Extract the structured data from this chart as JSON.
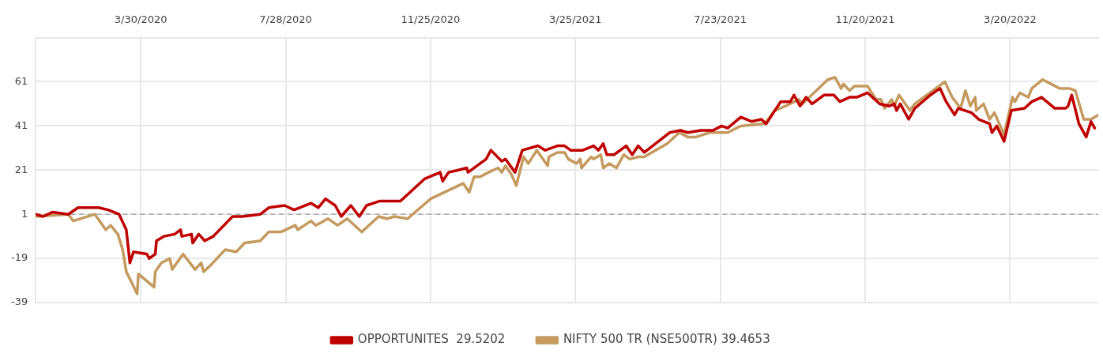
{
  "chart_data": {
    "type": "line",
    "xlim": [
      "2020-01-03",
      "2022-06-01"
    ],
    "xticks": [
      {
        "value": "2020-03-30",
        "label": "3/30/2020"
      },
      {
        "value": "2020-07-28",
        "label": "7/28/2020"
      },
      {
        "value": "2020-11-25",
        "label": "11/25/2020"
      },
      {
        "value": "2021-03-25",
        "label": "3/25/2021"
      },
      {
        "value": "2021-07-23",
        "label": "7/23/2021"
      },
      {
        "value": "2021-11-20",
        "label": "11/20/2021"
      },
      {
        "value": "2022-03-20",
        "label": "3/20/2022"
      }
    ],
    "ylim": [
      -39,
      81
    ],
    "yticks": [
      -39,
      -19,
      1,
      21,
      41,
      61
    ],
    "grid": true,
    "legend": "bottom",
    "marker": "none",
    "line_style": "solid",
    "ref_lines": [
      {
        "axis": "y",
        "value": 1,
        "color": "#aaaaaa",
        "line_style": "dashed"
      }
    ],
    "series": [
      {
        "name": "OPPORTUNITES  29.5202",
        "color": "#c00000",
        "x": [
          "2020-01-03",
          "2020-01-09",
          "2020-01-17",
          "2020-01-30",
          "2020-02-07",
          "2020-02-24",
          "2020-03-03",
          "2020-03-12",
          "2020-03-18",
          "2020-03-21",
          "2020-03-24",
          "2020-04-04",
          "2020-04-06",
          "2020-04-11",
          "2020-04-12",
          "2020-04-18",
          "2020-04-27",
          "2020-05-02",
          "2020-05-03",
          "2020-05-11",
          "2020-05-12",
          "2020-05-17",
          "2020-05-22",
          "2020-05-29",
          "2020-06-14",
          "2020-06-22",
          "2020-07-07",
          "2020-07-14",
          "2020-07-27",
          "2020-08-04",
          "2020-08-18",
          "2020-08-24",
          "2020-08-30",
          "2020-09-07",
          "2020-09-12",
          "2020-09-20",
          "2020-09-27",
          "2020-10-03",
          "2020-10-14",
          "2020-10-31",
          "2020-11-20",
          "2020-12-03",
          "2020-12-05",
          "2020-12-10",
          "2020-12-18",
          "2020-12-25",
          "2020-12-26",
          "2021-01-10",
          "2021-01-14",
          "2021-01-23",
          "2021-01-26",
          "2021-02-03",
          "2021-02-09",
          "2021-02-22",
          "2021-02-28",
          "2021-03-10",
          "2021-03-16",
          "2021-03-21",
          "2021-03-31",
          "2021-04-09",
          "2021-04-13",
          "2021-04-17",
          "2021-04-20",
          "2021-04-26",
          "2021-05-06",
          "2021-05-11",
          "2021-05-16",
          "2021-05-21",
          "2021-06-11",
          "2021-06-20",
          "2021-06-26",
          "2021-07-07",
          "2021-07-17",
          "2021-07-24",
          "2021-07-29",
          "2021-08-09",
          "2021-08-18",
          "2021-08-26",
          "2021-08-30",
          "2021-09-11",
          "2021-09-19",
          "2021-09-22",
          "2021-09-27",
          "2021-10-02",
          "2021-10-07",
          "2021-10-17",
          "2021-10-25",
          "2021-10-30",
          "2021-11-07",
          "2021-11-13",
          "2021-11-22",
          "2021-12-02",
          "2021-12-10",
          "2021-12-14",
          "2021-12-16",
          "2021-12-19",
          "2021-12-26",
          "2021-12-31",
          "2022-01-13",
          "2022-01-21",
          "2022-01-26",
          "2022-02-02",
          "2022-02-05",
          "2022-02-16",
          "2022-02-22",
          "2022-03-03",
          "2022-03-05",
          "2022-03-09",
          "2022-03-15",
          "2022-03-21",
          "2022-04-01",
          "2022-04-07",
          "2022-04-15",
          "2022-04-26",
          "2022-05-05",
          "2022-05-07",
          "2022-05-10",
          "2022-05-16",
          "2022-05-22",
          "2022-05-26",
          "2022-05-29"
        ],
        "values": [
          1,
          0,
          2,
          1,
          4,
          4,
          3,
          1,
          -6,
          -21,
          -16,
          -17,
          -19,
          -17,
          -11,
          -9,
          -8,
          -6,
          -9,
          -8,
          -12,
          -8,
          -11,
          -9,
          0,
          0,
          1,
          4,
          5,
          3,
          6,
          4,
          8,
          5,
          0,
          5,
          0,
          5,
          7,
          7,
          17,
          20,
          16,
          20,
          21,
          22,
          20,
          26,
          30,
          25,
          26,
          20,
          30,
          32,
          30,
          32,
          32,
          30,
          30,
          32,
          30,
          33,
          28,
          28,
          32,
          28,
          32,
          29,
          38,
          39,
          38,
          39,
          39,
          41,
          40,
          45,
          43,
          44,
          42,
          52,
          52,
          55,
          50,
          54,
          51,
          55,
          55,
          52,
          54,
          54,
          56,
          51,
          50,
          51,
          48,
          51,
          44,
          49,
          55,
          58,
          52,
          46,
          49,
          47,
          44,
          42,
          38,
          41,
          34,
          48,
          49,
          52,
          54,
          49,
          49,
          50,
          55,
          42,
          36,
          43,
          40
        ]
      },
      {
        "name": "NIFTY 500 TR (NSE500TR) 39.4653",
        "color": "#c49a5f",
        "x": [
          "2020-01-03",
          "2020-01-30",
          "2020-02-03",
          "2020-02-21",
          "2020-03-01",
          "2020-03-05",
          "2020-03-11",
          "2020-03-15",
          "2020-03-18",
          "2020-03-27",
          "2020-03-28",
          "2020-04-10",
          "2020-04-11",
          "2020-04-16",
          "2020-04-23",
          "2020-04-25",
          "2020-05-04",
          "2020-05-14",
          "2020-05-19",
          "2020-05-21",
          "2020-05-27",
          "2020-06-08",
          "2020-06-17",
          "2020-06-24",
          "2020-07-07",
          "2020-07-14",
          "2020-07-24",
          "2020-08-05",
          "2020-08-07",
          "2020-08-18",
          "2020-08-22",
          "2020-09-01",
          "2020-09-09",
          "2020-09-17",
          "2020-09-29",
          "2020-10-13",
          "2020-10-20",
          "2020-10-26",
          "2020-11-06",
          "2020-11-25",
          "2020-12-22",
          "2020-12-27",
          "2020-12-31",
          "2021-01-05",
          "2021-01-12",
          "2021-01-20",
          "2021-01-23",
          "2021-01-26",
          "2021-01-31",
          "2021-02-04",
          "2021-02-10",
          "2021-02-14",
          "2021-02-21",
          "2021-03-02",
          "2021-03-03",
          "2021-03-10",
          "2021-03-16",
          "2021-03-19",
          "2021-03-26",
          "2021-03-29",
          "2021-03-30",
          "2021-04-07",
          "2021-04-09",
          "2021-04-15",
          "2021-04-17",
          "2021-04-22",
          "2021-04-28",
          "2021-05-04",
          "2021-05-09",
          "2021-05-16",
          "2021-05-21",
          "2021-06-09",
          "2021-06-19",
          "2021-06-26",
          "2021-07-03",
          "2021-07-14",
          "2021-07-29",
          "2021-08-09",
          "2021-08-29",
          "2021-09-06",
          "2021-09-15",
          "2021-09-26",
          "2021-09-29",
          "2021-10-20",
          "2021-10-26",
          "2021-10-31",
          "2021-11-02",
          "2021-11-07",
          "2021-11-11",
          "2021-11-22",
          "2021-11-29",
          "2021-12-03",
          "2021-12-06",
          "2021-12-12",
          "2021-12-14",
          "2021-12-18",
          "2021-12-27",
          "2021-12-31",
          "2022-01-15",
          "2022-01-25",
          "2022-01-31",
          "2022-02-07",
          "2022-02-11",
          "2022-02-15",
          "2022-02-19",
          "2022-02-20",
          "2022-02-26",
          "2022-03-03",
          "2022-03-07",
          "2022-03-15",
          "2022-03-22",
          "2022-03-24",
          "2022-03-28",
          "2022-04-04",
          "2022-04-07",
          "2022-04-16",
          "2022-04-30",
          "2022-05-08",
          "2022-05-13",
          "2022-05-20",
          "2022-05-26",
          "2022-06-01"
        ],
        "values": [
          0,
          1,
          -2,
          1,
          -6,
          -4,
          -8,
          -15,
          -25,
          -35,
          -26,
          -32,
          -25,
          -21,
          -19,
          -24,
          -17,
          -24,
          -21,
          -25,
          -22,
          -15,
          -16,
          -12,
          -11,
          -7,
          -7,
          -4,
          -6,
          -2,
          -4,
          -1,
          -4,
          -1,
          -7,
          0,
          -1,
          0,
          -1,
          8,
          15,
          11,
          18,
          18,
          20,
          22,
          20,
          23,
          19,
          14,
          27,
          24,
          30,
          23,
          27,
          29,
          29,
          26,
          24,
          26,
          22,
          27,
          26,
          28,
          22,
          24,
          22,
          28,
          26,
          27,
          27,
          33,
          38,
          36,
          36,
          38,
          38,
          41,
          42,
          48,
          50,
          53,
          51,
          62,
          63,
          58,
          60,
          57,
          59,
          59,
          53,
          53,
          49,
          53,
          50,
          55,
          48,
          51,
          57,
          61,
          54,
          49,
          57,
          50,
          54,
          48,
          51,
          44,
          47,
          37,
          54,
          52,
          56,
          54,
          58,
          62,
          58,
          58,
          57,
          44,
          44,
          46
        ]
      }
    ]
  }
}
